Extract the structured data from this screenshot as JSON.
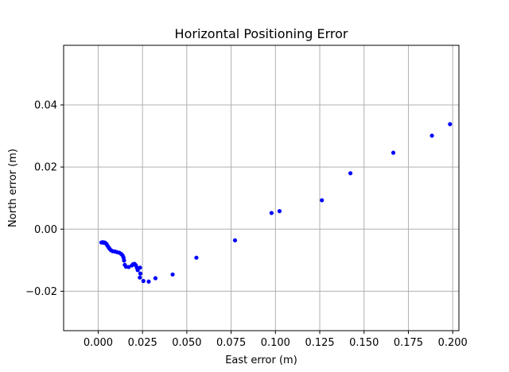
{
  "chart_data": {
    "type": "scatter",
    "title": "Horizontal Positioning Error",
    "xlabel": "East error (m)",
    "ylabel": "North error (m)",
    "xlim": [
      -0.0195,
      0.2035
    ],
    "ylim": [
      -0.0327,
      0.0592
    ],
    "xticks": [
      0.0,
      0.025,
      0.05,
      0.075,
      0.1,
      0.125,
      0.15,
      0.175,
      0.2
    ],
    "xtick_labels": [
      "0.000",
      "0.025",
      "0.050",
      "0.075",
      "0.100",
      "0.125",
      "0.150",
      "0.175",
      "0.200"
    ],
    "yticks": [
      -0.02,
      0.0,
      0.02,
      0.04
    ],
    "ytick_labels": [
      "−0.02",
      "0.00",
      "0.02",
      "0.04"
    ],
    "grid": true,
    "marker_color": "#0000ff",
    "series": [
      {
        "points": [
          [
            0.0018,
            -0.0043
          ],
          [
            0.0026,
            -0.0042
          ],
          [
            0.0031,
            -0.0044
          ],
          [
            0.0036,
            -0.0043
          ],
          [
            0.0041,
            -0.0045
          ],
          [
            0.0047,
            -0.0048
          ],
          [
            0.0052,
            -0.0053
          ],
          [
            0.0058,
            -0.0058
          ],
          [
            0.0064,
            -0.0063
          ],
          [
            0.0072,
            -0.0068
          ],
          [
            0.0082,
            -0.0071
          ],
          [
            0.0094,
            -0.0072
          ],
          [
            0.0106,
            -0.0074
          ],
          [
            0.0119,
            -0.0076
          ],
          [
            0.013,
            -0.008
          ],
          [
            0.0138,
            -0.0085
          ],
          [
            0.0143,
            -0.0092
          ],
          [
            0.0146,
            -0.0101
          ],
          [
            0.015,
            -0.0115
          ],
          [
            0.0157,
            -0.0121
          ],
          [
            0.0172,
            -0.0122
          ],
          [
            0.019,
            -0.0117
          ],
          [
            0.0197,
            -0.0113
          ],
          [
            0.0205,
            -0.0112
          ],
          [
            0.0212,
            -0.0116
          ],
          [
            0.0218,
            -0.0124
          ],
          [
            0.0223,
            -0.0132
          ],
          [
            0.0236,
            -0.0124
          ],
          [
            0.0238,
            -0.0143
          ],
          [
            0.0235,
            -0.0156
          ],
          [
            0.0255,
            -0.0167
          ],
          [
            0.0285,
            -0.0169
          ],
          [
            0.0323,
            -0.0158
          ],
          [
            0.042,
            -0.0146
          ],
          [
            0.0554,
            -0.0092
          ],
          [
            0.0772,
            -0.0036
          ],
          [
            0.0978,
            0.0052
          ],
          [
            0.1023,
            0.0058
          ],
          [
            0.1262,
            0.0093
          ],
          [
            0.1423,
            0.018
          ],
          [
            0.1665,
            0.0246
          ],
          [
            0.1883,
            0.0301
          ],
          [
            0.1985,
            0.0338
          ]
        ]
      }
    ]
  }
}
